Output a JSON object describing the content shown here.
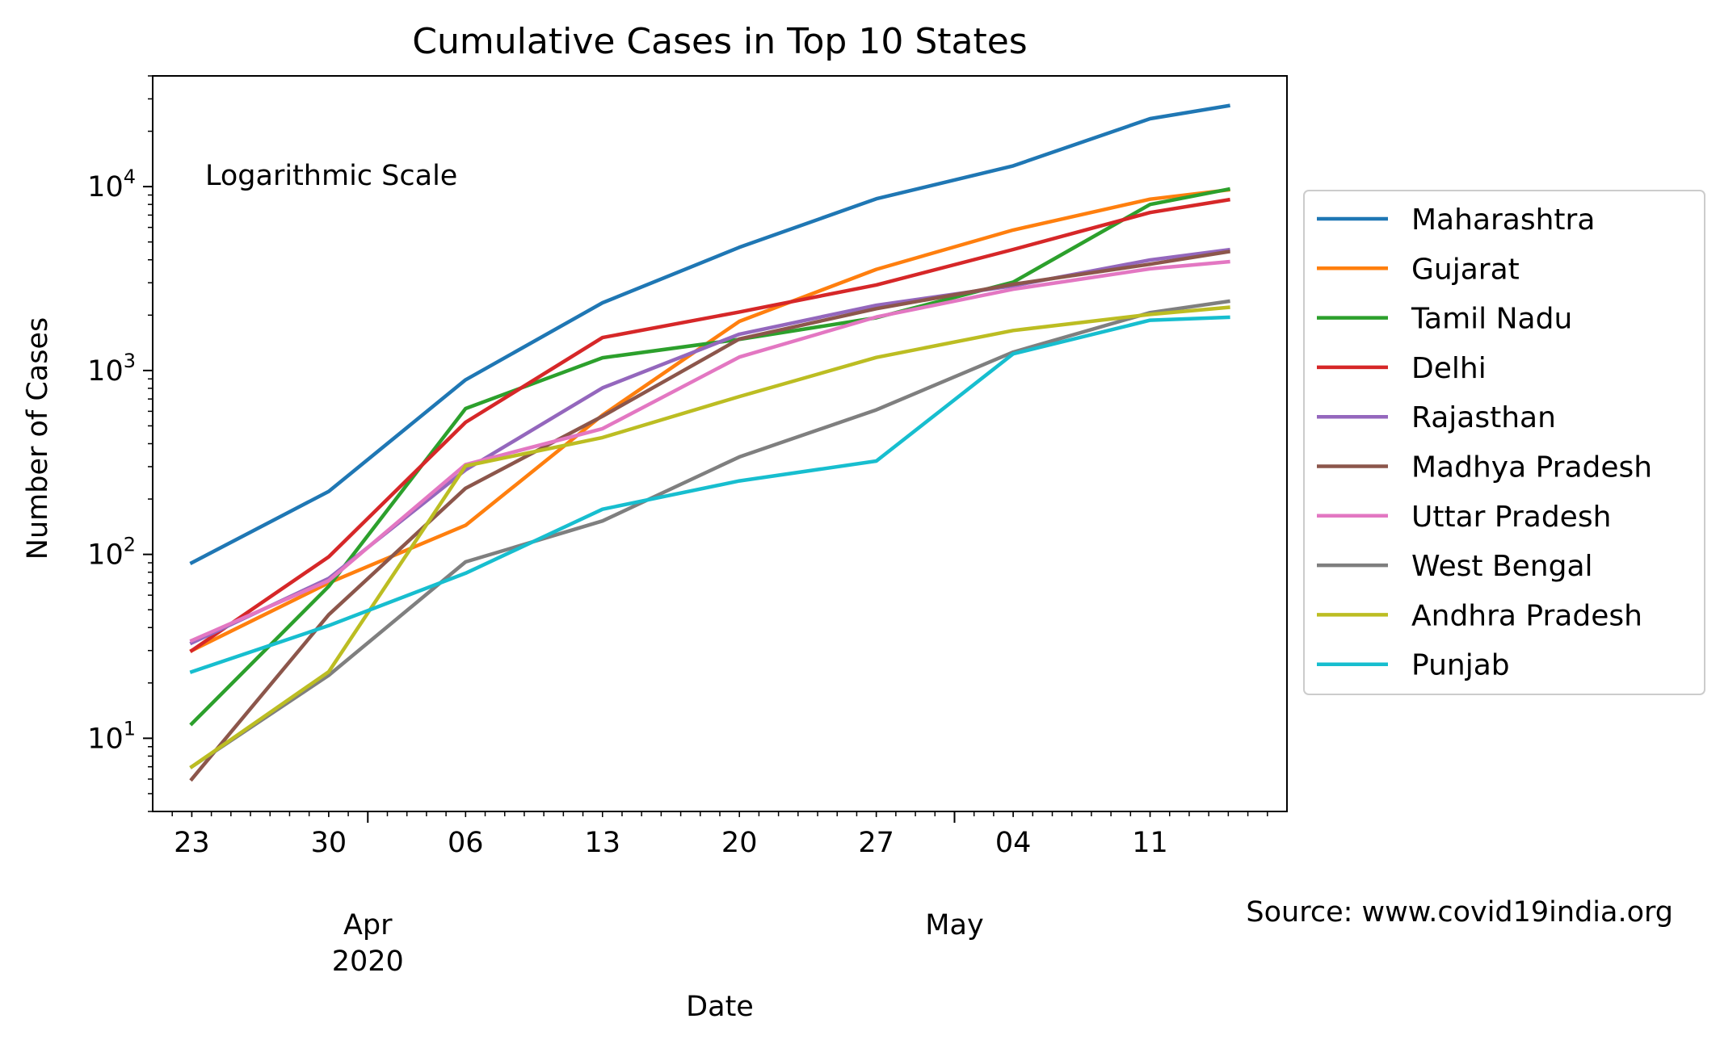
{
  "chart_data": {
    "type": "line",
    "title": "Cumulative Cases in Top 10 States",
    "xlabel": "Date",
    "ylabel": "Number of Cases",
    "yscale": "log",
    "ylim": [
      4,
      40000
    ],
    "xlim": [
      "2020-03-21",
      "2020-05-18"
    ],
    "annotation": "Logarithmic Scale",
    "source": "Source: www.covid19india.org",
    "legend_position": "right, outside plot",
    "grid": false,
    "x_ticks": [
      {
        "date": "2020-03-23",
        "label": "23"
      },
      {
        "date": "2020-03-30",
        "label": "30"
      },
      {
        "date": "2020-04-06",
        "label": "06"
      },
      {
        "date": "2020-04-13",
        "label": "13"
      },
      {
        "date": "2020-04-20",
        "label": "20"
      },
      {
        "date": "2020-04-27",
        "label": "27"
      },
      {
        "date": "2020-05-04",
        "label": "04"
      },
      {
        "date": "2020-05-11",
        "label": "11"
      }
    ],
    "x_major_ticks": [
      {
        "date": "2020-04-01",
        "label1": "Apr",
        "label2": "2020"
      },
      {
        "date": "2020-05-01",
        "label1": "May",
        "label2": ""
      }
    ],
    "y_ticks": [
      {
        "value": 10,
        "base": "10",
        "exp": "1"
      },
      {
        "value": 100,
        "base": "10",
        "exp": "2"
      },
      {
        "value": 1000,
        "base": "10",
        "exp": "3"
      },
      {
        "value": 10000,
        "base": "10",
        "exp": "4"
      }
    ],
    "x": [
      "2020-03-23",
      "2020-03-30",
      "2020-04-06",
      "2020-04-13",
      "2020-04-20",
      "2020-04-27",
      "2020-05-04",
      "2020-05-11",
      "2020-05-15"
    ],
    "series": [
      {
        "name": "Maharashtra",
        "color": "#1f77b4",
        "values": [
          90,
          220,
          890,
          2334,
          4676,
          8590,
          12974,
          23401,
          27524
        ]
      },
      {
        "name": "Gujarat",
        "color": "#ff7f0e",
        "values": [
          30,
          70,
          144,
          572,
          1851,
          3548,
          5804,
          8541,
          9592
        ]
      },
      {
        "name": "Tamil Nadu",
        "color": "#2ca02c",
        "values": [
          12,
          67,
          621,
          1173,
          1477,
          1937,
          3023,
          8002,
          9674
        ]
      },
      {
        "name": "Delhi",
        "color": "#d62728",
        "values": [
          30,
          97,
          523,
          1510,
          2081,
          2918,
          4549,
          7233,
          8470
        ]
      },
      {
        "name": "Rajasthan",
        "color": "#9467bd",
        "values": [
          33,
          74,
          288,
          804,
          1576,
          2262,
          2886,
          3988,
          4534
        ]
      },
      {
        "name": "Madhya Pradesh",
        "color": "#8c564b",
        "values": [
          6,
          47,
          229,
          564,
          1485,
          2168,
          2942,
          3785,
          4426
        ]
      },
      {
        "name": "Uttar Pradesh",
        "color": "#e377c2",
        "values": [
          34,
          72,
          308,
          483,
          1184,
          1955,
          2766,
          3573,
          3902
        ]
      },
      {
        "name": "West Bengal",
        "color": "#7f7f7f",
        "values": [
          7,
          22,
          91,
          152,
          339,
          611,
          1259,
          2063,
          2377
        ]
      },
      {
        "name": "Andhra Pradesh",
        "color": "#bcbd22",
        "values": [
          7,
          23,
          303,
          432,
          722,
          1177,
          1650,
          2018,
          2205
        ]
      },
      {
        "name": "Punjab",
        "color": "#17becf",
        "values": [
          23,
          41,
          79,
          176,
          251,
          322,
          1233,
          1877,
          1946
        ]
      }
    ]
  }
}
